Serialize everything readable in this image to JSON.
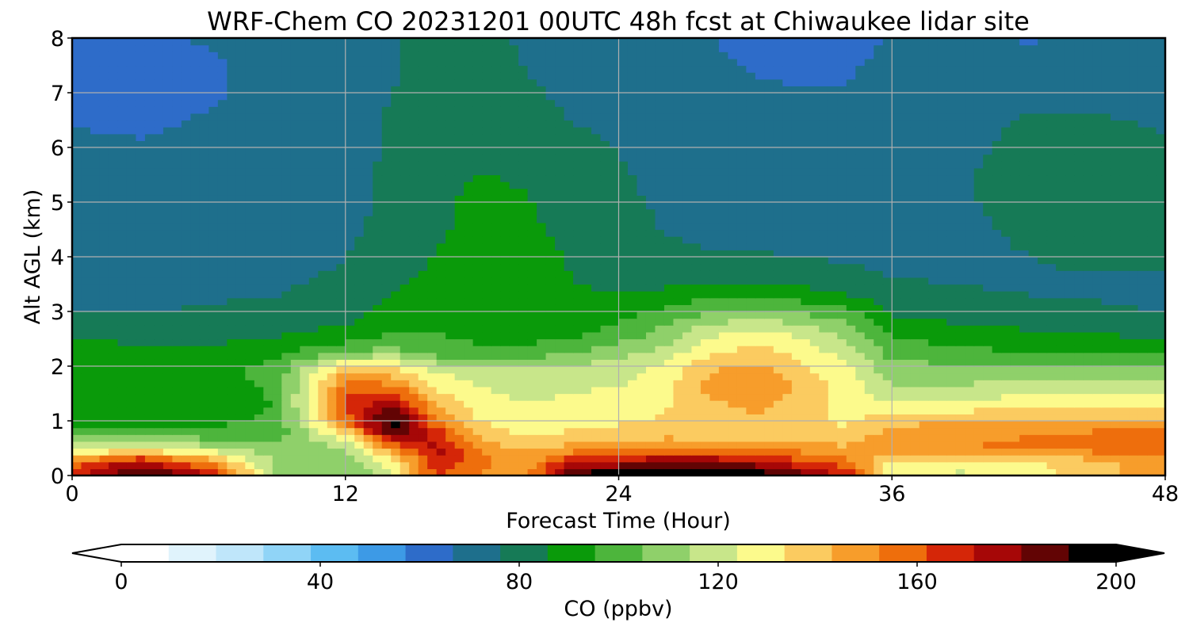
{
  "chart_data": {
    "type": "heatmap",
    "title": "WRF-Chem CO  20231201 00UTC 48h fcst at Chiwaukee lidar site",
    "xlabel": "Forecast Time (Hour)",
    "ylabel": "Alt AGL (km)",
    "xlim": [
      0,
      48
    ],
    "ylim": [
      0,
      8
    ],
    "x_ticks": [
      0,
      12,
      24,
      36,
      48
    ],
    "y_ticks": [
      0,
      1,
      2,
      3,
      4,
      5,
      6,
      7,
      8
    ],
    "grid": true,
    "x": [
      0,
      3,
      6,
      9,
      12,
      14,
      16,
      18,
      20,
      22,
      24,
      26,
      28,
      30,
      32,
      34,
      36,
      39,
      42,
      45,
      48
    ],
    "y": [
      0,
      0.25,
      0.5,
      0.75,
      1.0,
      1.25,
      1.5,
      1.75,
      2.0,
      2.25,
      2.5,
      2.75,
      3.0,
      3.5,
      4.0,
      4.5,
      5.0,
      5.5,
      6.0,
      6.5,
      7.0,
      7.5,
      8.0
    ],
    "values": [
      [
        170,
        195,
        175,
        110,
        105,
        120,
        165,
        150,
        150,
        195,
        200,
        200,
        200,
        200,
        185,
        170,
        125,
        122,
        128,
        138,
        150
      ],
      [
        155,
        175,
        150,
        112,
        108,
        128,
        170,
        155,
        148,
        170,
        175,
        180,
        180,
        175,
        165,
        155,
        130,
        128,
        132,
        140,
        148
      ],
      [
        120,
        125,
        118,
        108,
        112,
        150,
        175,
        150,
        140,
        148,
        150,
        152,
        150,
        150,
        148,
        145,
        150,
        152,
        155,
        157,
        158
      ],
      [
        100,
        100,
        100,
        100,
        130,
        185,
        168,
        140,
        132,
        135,
        138,
        140,
        140,
        140,
        138,
        135,
        148,
        150,
        152,
        155,
        155
      ],
      [
        92,
        90,
        92,
        98,
        155,
        198,
        155,
        132,
        128,
        130,
        132,
        135,
        138,
        140,
        136,
        132,
        140,
        142,
        143,
        145,
        145
      ],
      [
        88,
        86,
        88,
        96,
        165,
        182,
        145,
        128,
        125,
        127,
        128,
        132,
        140,
        145,
        138,
        130,
        128,
        130,
        132,
        134,
        135
      ],
      [
        87,
        86,
        88,
        97,
        162,
        165,
        135,
        125,
        122,
        124,
        126,
        132,
        145,
        150,
        140,
        130,
        118,
        120,
        122,
        124,
        125
      ],
      [
        90,
        88,
        91,
        99,
        150,
        148,
        128,
        122,
        120,
        120,
        122,
        130,
        145,
        152,
        140,
        128,
        112,
        112,
        114,
        115,
        116
      ],
      [
        92,
        90,
        92,
        98,
        135,
        132,
        118,
        116,
        116,
        116,
        118,
        125,
        140,
        145,
        135,
        125,
        108,
        106,
        106,
        105,
        104
      ],
      [
        90,
        88,
        88,
        93,
        105,
        110,
        100,
        98,
        99,
        105,
        112,
        118,
        132,
        138,
        130,
        120,
        100,
        97,
        96,
        95,
        94
      ],
      [
        86,
        84,
        84,
        86,
        92,
        98,
        96,
        94,
        93,
        95,
        102,
        110,
        125,
        130,
        125,
        114,
        96,
        92,
        90,
        88,
        86
      ],
      [
        80,
        80,
        80,
        82,
        86,
        92,
        94,
        92,
        90,
        90,
        97,
        104,
        116,
        120,
        116,
        108,
        91,
        86,
        84,
        82,
        80
      ],
      [
        76,
        76,
        77,
        78,
        82,
        89,
        92,
        92,
        89,
        88,
        92,
        97,
        104,
        106,
        102,
        97,
        84,
        80,
        78,
        77,
        76
      ],
      [
        73,
        73,
        74,
        75,
        78,
        84,
        89,
        90,
        89,
        86,
        84,
        84,
        86,
        86,
        84,
        80,
        77,
        76,
        75,
        75,
        75
      ],
      [
        72,
        72,
        72,
        73,
        76,
        80,
        86,
        88,
        88,
        85,
        80,
        78,
        77,
        77,
        76,
        75,
        74,
        74,
        76,
        78,
        77
      ],
      [
        71,
        71,
        71,
        72,
        75,
        78,
        85,
        87,
        87,
        84,
        79,
        76,
        74,
        74,
        73,
        73,
        73,
        74,
        78,
        81,
        79
      ],
      [
        70,
        70,
        70,
        71,
        74,
        78,
        85,
        87,
        86,
        82,
        78,
        75,
        72,
        72,
        72,
        72,
        73,
        75,
        80,
        83,
        80
      ],
      [
        69,
        69,
        69,
        70,
        74,
        78,
        84,
        86,
        85,
        80,
        77,
        74,
        71,
        71,
        71,
        71,
        72,
        75,
        80,
        82,
        79
      ],
      [
        68,
        67,
        68,
        69,
        73,
        77,
        83,
        84,
        82,
        78,
        76,
        73,
        71,
        70,
        70,
        70,
        71,
        74,
        79,
        80,
        77
      ],
      [
        66,
        66,
        67,
        69,
        73,
        77,
        82,
        82,
        79,
        76,
        75,
        72,
        70,
        69,
        69,
        69,
        70,
        73,
        77,
        77,
        75
      ],
      [
        64,
        65,
        66,
        68,
        72,
        76,
        81,
        80,
        77,
        75,
        74,
        72,
        69,
        68,
        67,
        67,
        69,
        71,
        74,
        74,
        73
      ],
      [
        65,
        65,
        66,
        68,
        72,
        75,
        80,
        79,
        76,
        74,
        73,
        71,
        68,
        66,
        65,
        66,
        68,
        70,
        70,
        70,
        70
      ],
      [
        66,
        66,
        67,
        68,
        72,
        75,
        80,
        78,
        75,
        73,
        72,
        70,
        67,
        64,
        63,
        65,
        67,
        68,
        66,
        67,
        68
      ]
    ],
    "colorbar": {
      "label": "CO  (ppbv)",
      "min": 0,
      "max": 200,
      "ticks": [
        0,
        40,
        80,
        120,
        160,
        200
      ],
      "extend": "both",
      "colors": [
        "#ffffff",
        "#e0f3fc",
        "#bfe6fa",
        "#90d4f7",
        "#5cbcf2",
        "#3d9ae6",
        "#2e6cc9",
        "#1e6f8c",
        "#167a56",
        "#0a9a0a",
        "#4db53c",
        "#8fd06a",
        "#c8e68a",
        "#fcfa8c",
        "#fbcb60",
        "#f79d2b",
        "#ee6e0c",
        "#d52608",
        "#a60707",
        "#620404",
        "#000000"
      ]
    }
  }
}
